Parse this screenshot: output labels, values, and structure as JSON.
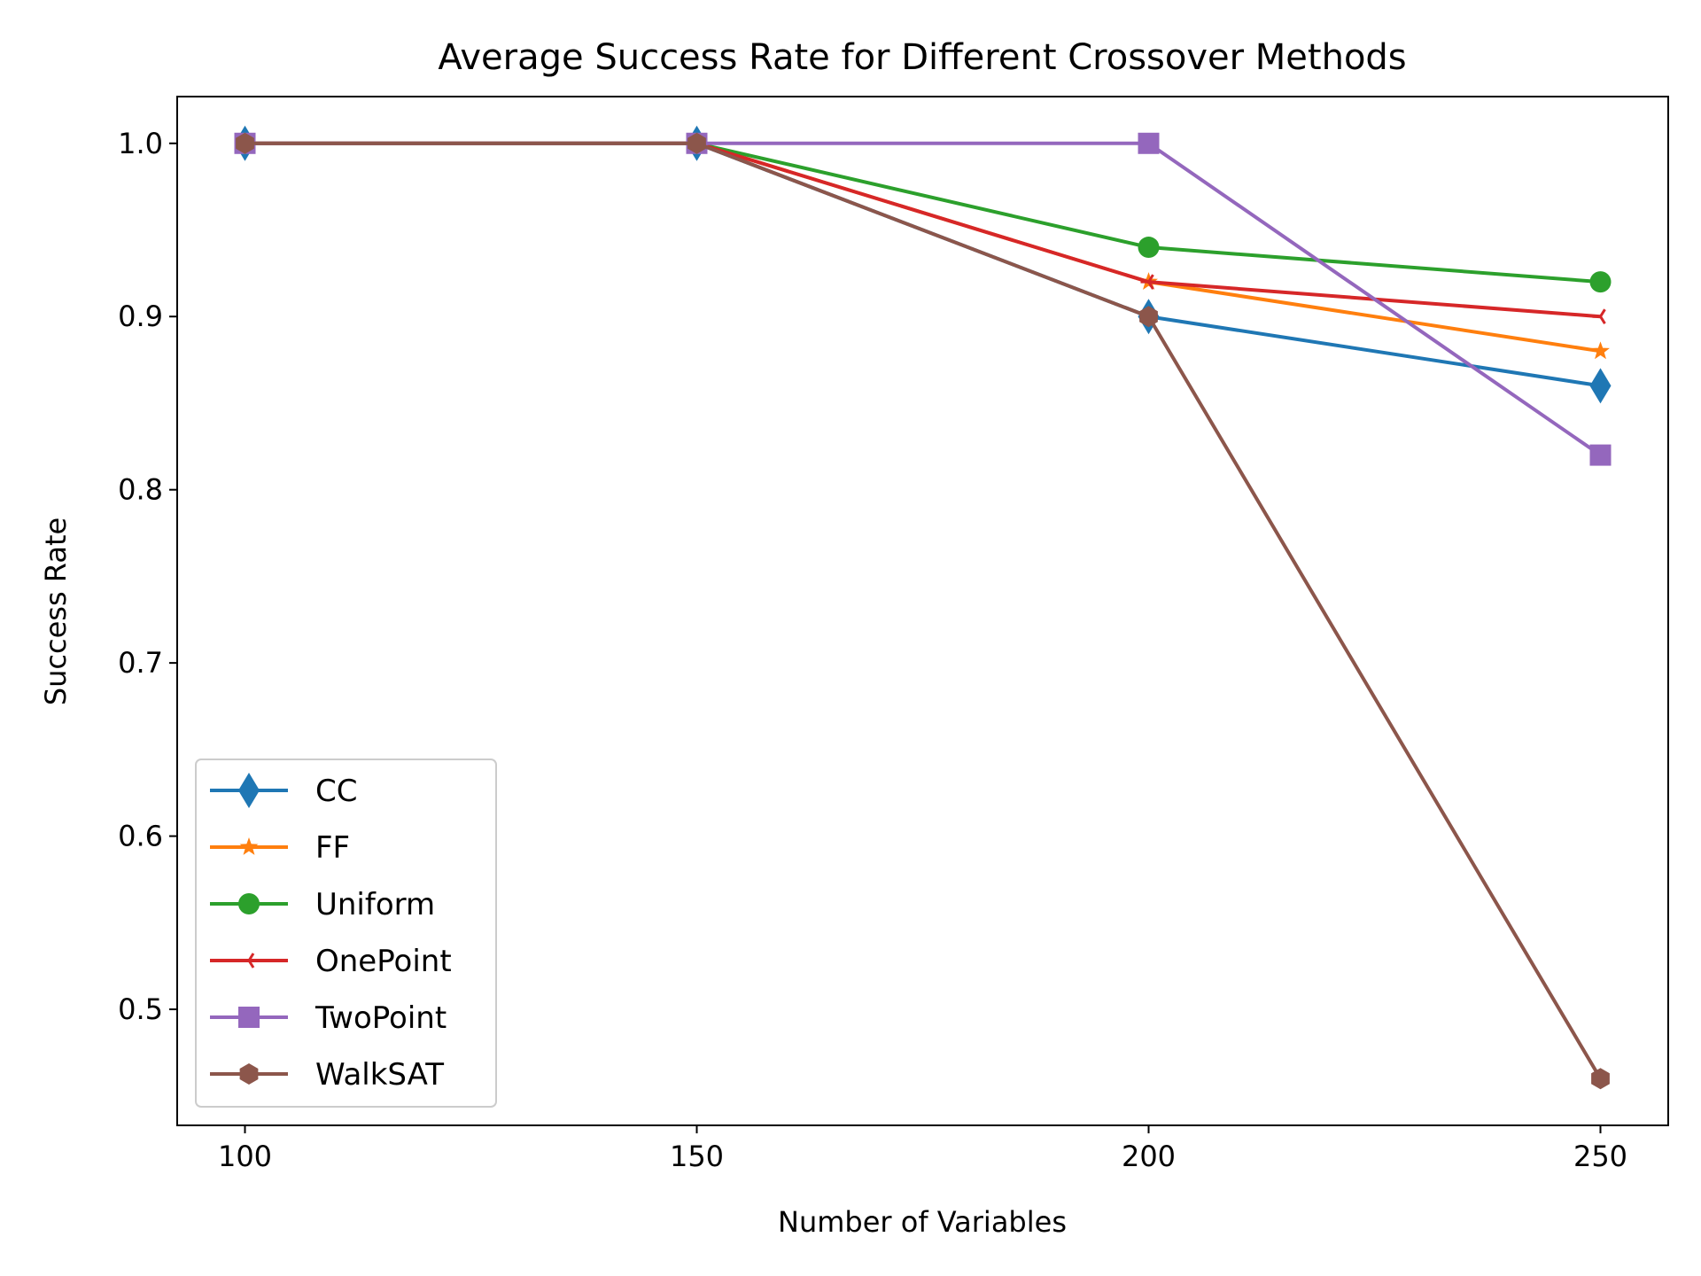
{
  "chart_data": {
    "type": "line",
    "title": "Average Success Rate for Different Crossover Methods",
    "xlabel": "Number of Variables",
    "ylabel": "Success Rate",
    "x": [
      100,
      150,
      200,
      250
    ],
    "xlim": [
      92.5,
      257.5
    ],
    "ylim": [
      0.433,
      1.027
    ],
    "xticks": [
      100,
      150,
      200,
      250
    ],
    "xtick_labels": [
      "100",
      "150",
      "200",
      "250"
    ],
    "yticks": [
      0.5,
      0.6,
      0.7,
      0.8,
      0.9,
      1.0
    ],
    "ytick_labels": [
      "0.5",
      "0.6",
      "0.7",
      "0.8",
      "0.9",
      "1.0"
    ],
    "grid": false,
    "legend_position": "lower-left",
    "series": [
      {
        "name": "CC",
        "values": [
          1.0,
          1.0,
          0.9,
          0.86
        ],
        "color": "#1f77b4",
        "marker": "diamond"
      },
      {
        "name": "FF",
        "values": [
          1.0,
          1.0,
          0.92,
          0.88
        ],
        "color": "#ff7f0e",
        "marker": "star"
      },
      {
        "name": "Uniform",
        "values": [
          1.0,
          1.0,
          0.94,
          0.92
        ],
        "color": "#2ca02c",
        "marker": "circle"
      },
      {
        "name": "OnePoint",
        "values": [
          1.0,
          1.0,
          0.92,
          0.9
        ],
        "color": "#d62728",
        "marker": "tri-left"
      },
      {
        "name": "TwoPoint",
        "values": [
          1.0,
          1.0,
          1.0,
          0.82
        ],
        "color": "#9467bd",
        "marker": "square"
      },
      {
        "name": "WalkSAT",
        "values": [
          1.0,
          1.0,
          0.9,
          0.46
        ],
        "color": "#8c564b",
        "marker": "hexagon"
      }
    ]
  }
}
